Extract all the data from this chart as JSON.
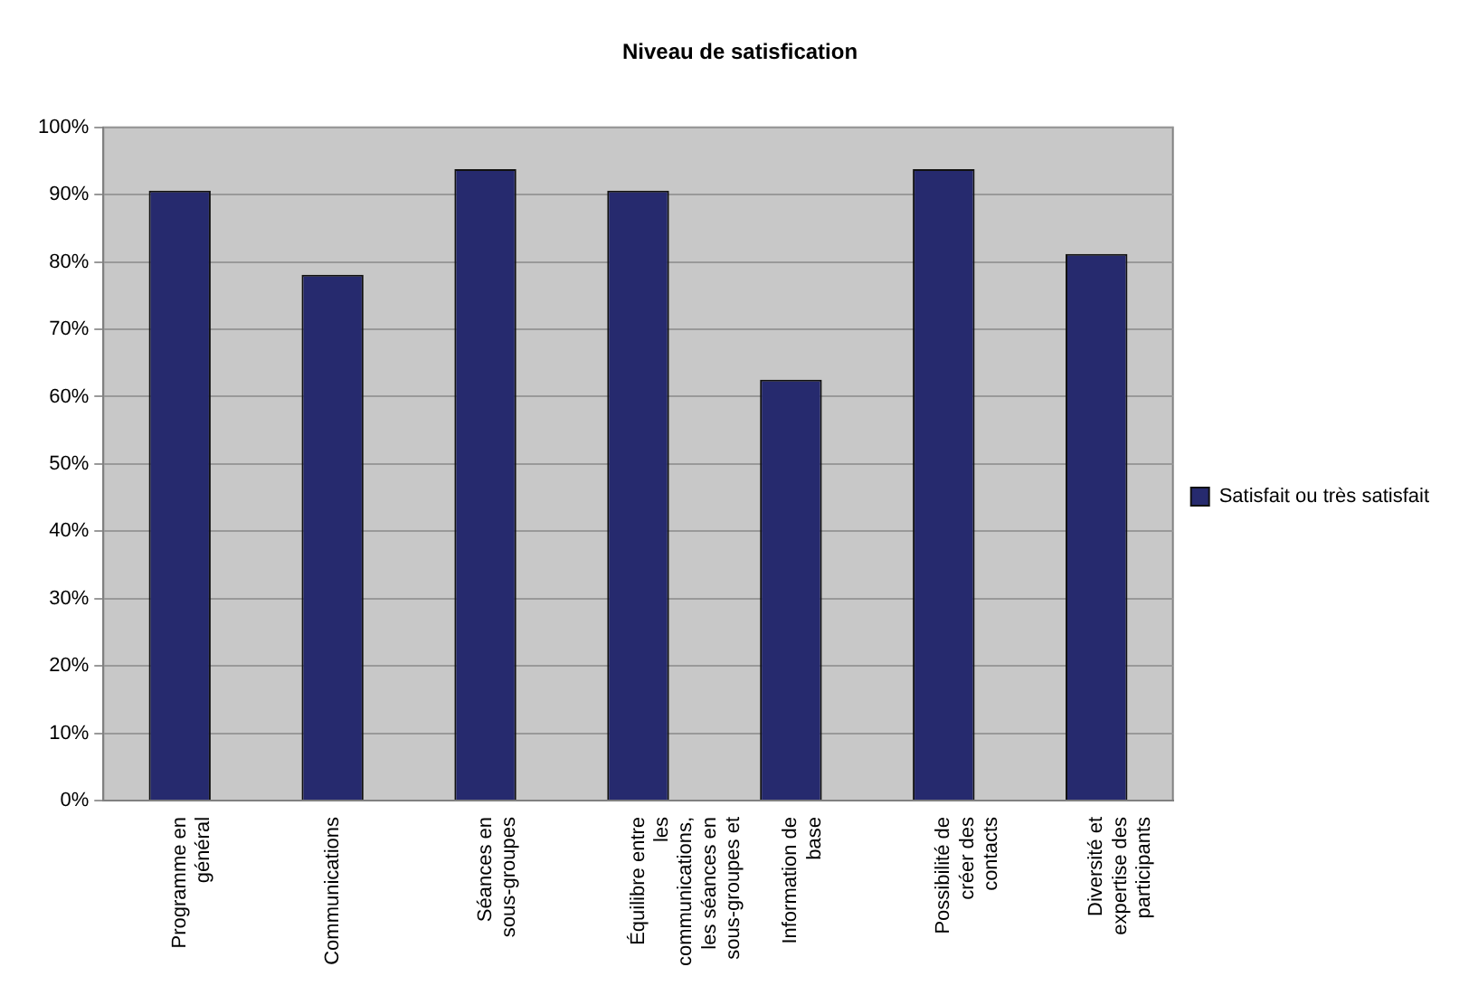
{
  "chart_data": {
    "type": "bar",
    "title": "Niveau de satisfication",
    "categories": [
      "Programme en général",
      "Communications",
      "Séances en sous-groupes",
      "Équilibre entre les communications, les séances en sous-groupes et",
      "Information de base",
      "Possibilité de créer des contacts",
      "Diversité et expertise des participants"
    ],
    "series": [
      {
        "name": "Satisfait ou très satisfait",
        "color": "#262a6e",
        "values": [
          90.6,
          78.1,
          93.8,
          90.6,
          62.5,
          93.8,
          81.2
        ]
      }
    ],
    "ylim": [
      0,
      100
    ],
    "yticks": [
      {
        "value": 0,
        "label": "0%"
      },
      {
        "value": 10,
        "label": "10%"
      },
      {
        "value": 20,
        "label": "20%"
      },
      {
        "value": 30,
        "label": "30%"
      },
      {
        "value": 40,
        "label": "40%"
      },
      {
        "value": 50,
        "label": "50%"
      },
      {
        "value": 60,
        "label": "60%"
      },
      {
        "value": 70,
        "label": "70%"
      },
      {
        "value": 80,
        "label": "80%"
      },
      {
        "value": 90,
        "label": "90%"
      },
      {
        "value": 100,
        "label": "100%"
      }
    ],
    "grid": "y",
    "legend": "right"
  }
}
